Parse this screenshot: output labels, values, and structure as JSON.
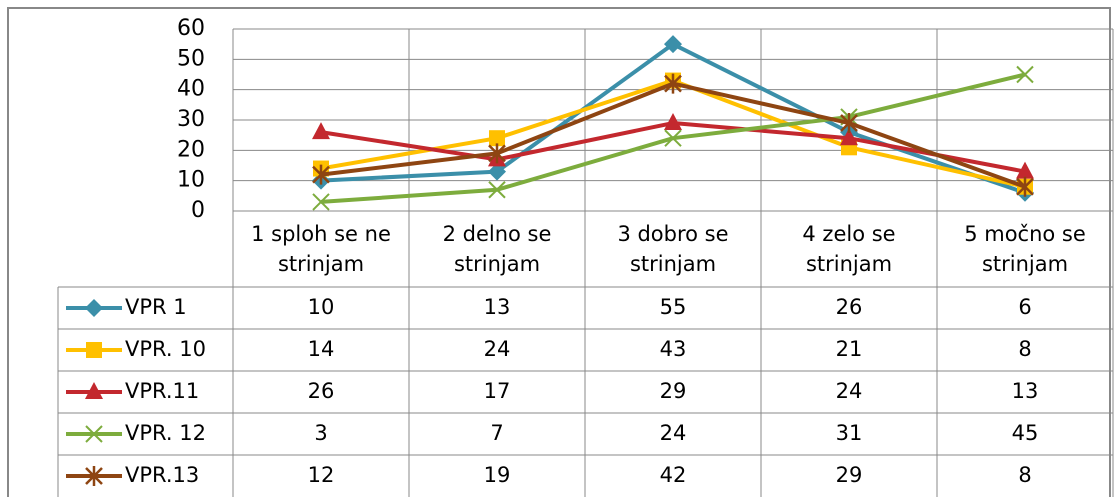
{
  "chart_data": {
    "type": "line",
    "categories": [
      "1 sploh se ne strinjam",
      "2 delno se strinjam",
      "3 dobro se strinjam",
      "4 zelo se strinjam",
      "5 močno se strinjam"
    ],
    "series": [
      {
        "name": "VPR 1",
        "color": "#3b8fa9",
        "marker": "diamond",
        "values": [
          10,
          13,
          55,
          26,
          6
        ]
      },
      {
        "name": "VPR. 10",
        "color": "#ffc000",
        "marker": "square",
        "values": [
          14,
          24,
          43,
          21,
          8
        ]
      },
      {
        "name": "VPR.11",
        "color": "#c3282e",
        "marker": "triangle",
        "values": [
          26,
          17,
          29,
          24,
          13
        ]
      },
      {
        "name": "VPR. 12",
        "color": "#7dac3d",
        "marker": "x",
        "values": [
          3,
          7,
          24,
          31,
          45
        ]
      },
      {
        "name": "VPR.13",
        "color": "#8e4512",
        "marker": "star",
        "values": [
          12,
          19,
          42,
          29,
          8
        ]
      }
    ],
    "ylim": [
      0,
      60
    ],
    "yticks": [
      0,
      10,
      20,
      30,
      40,
      50,
      60
    ],
    "grid": true,
    "data_table": true
  }
}
